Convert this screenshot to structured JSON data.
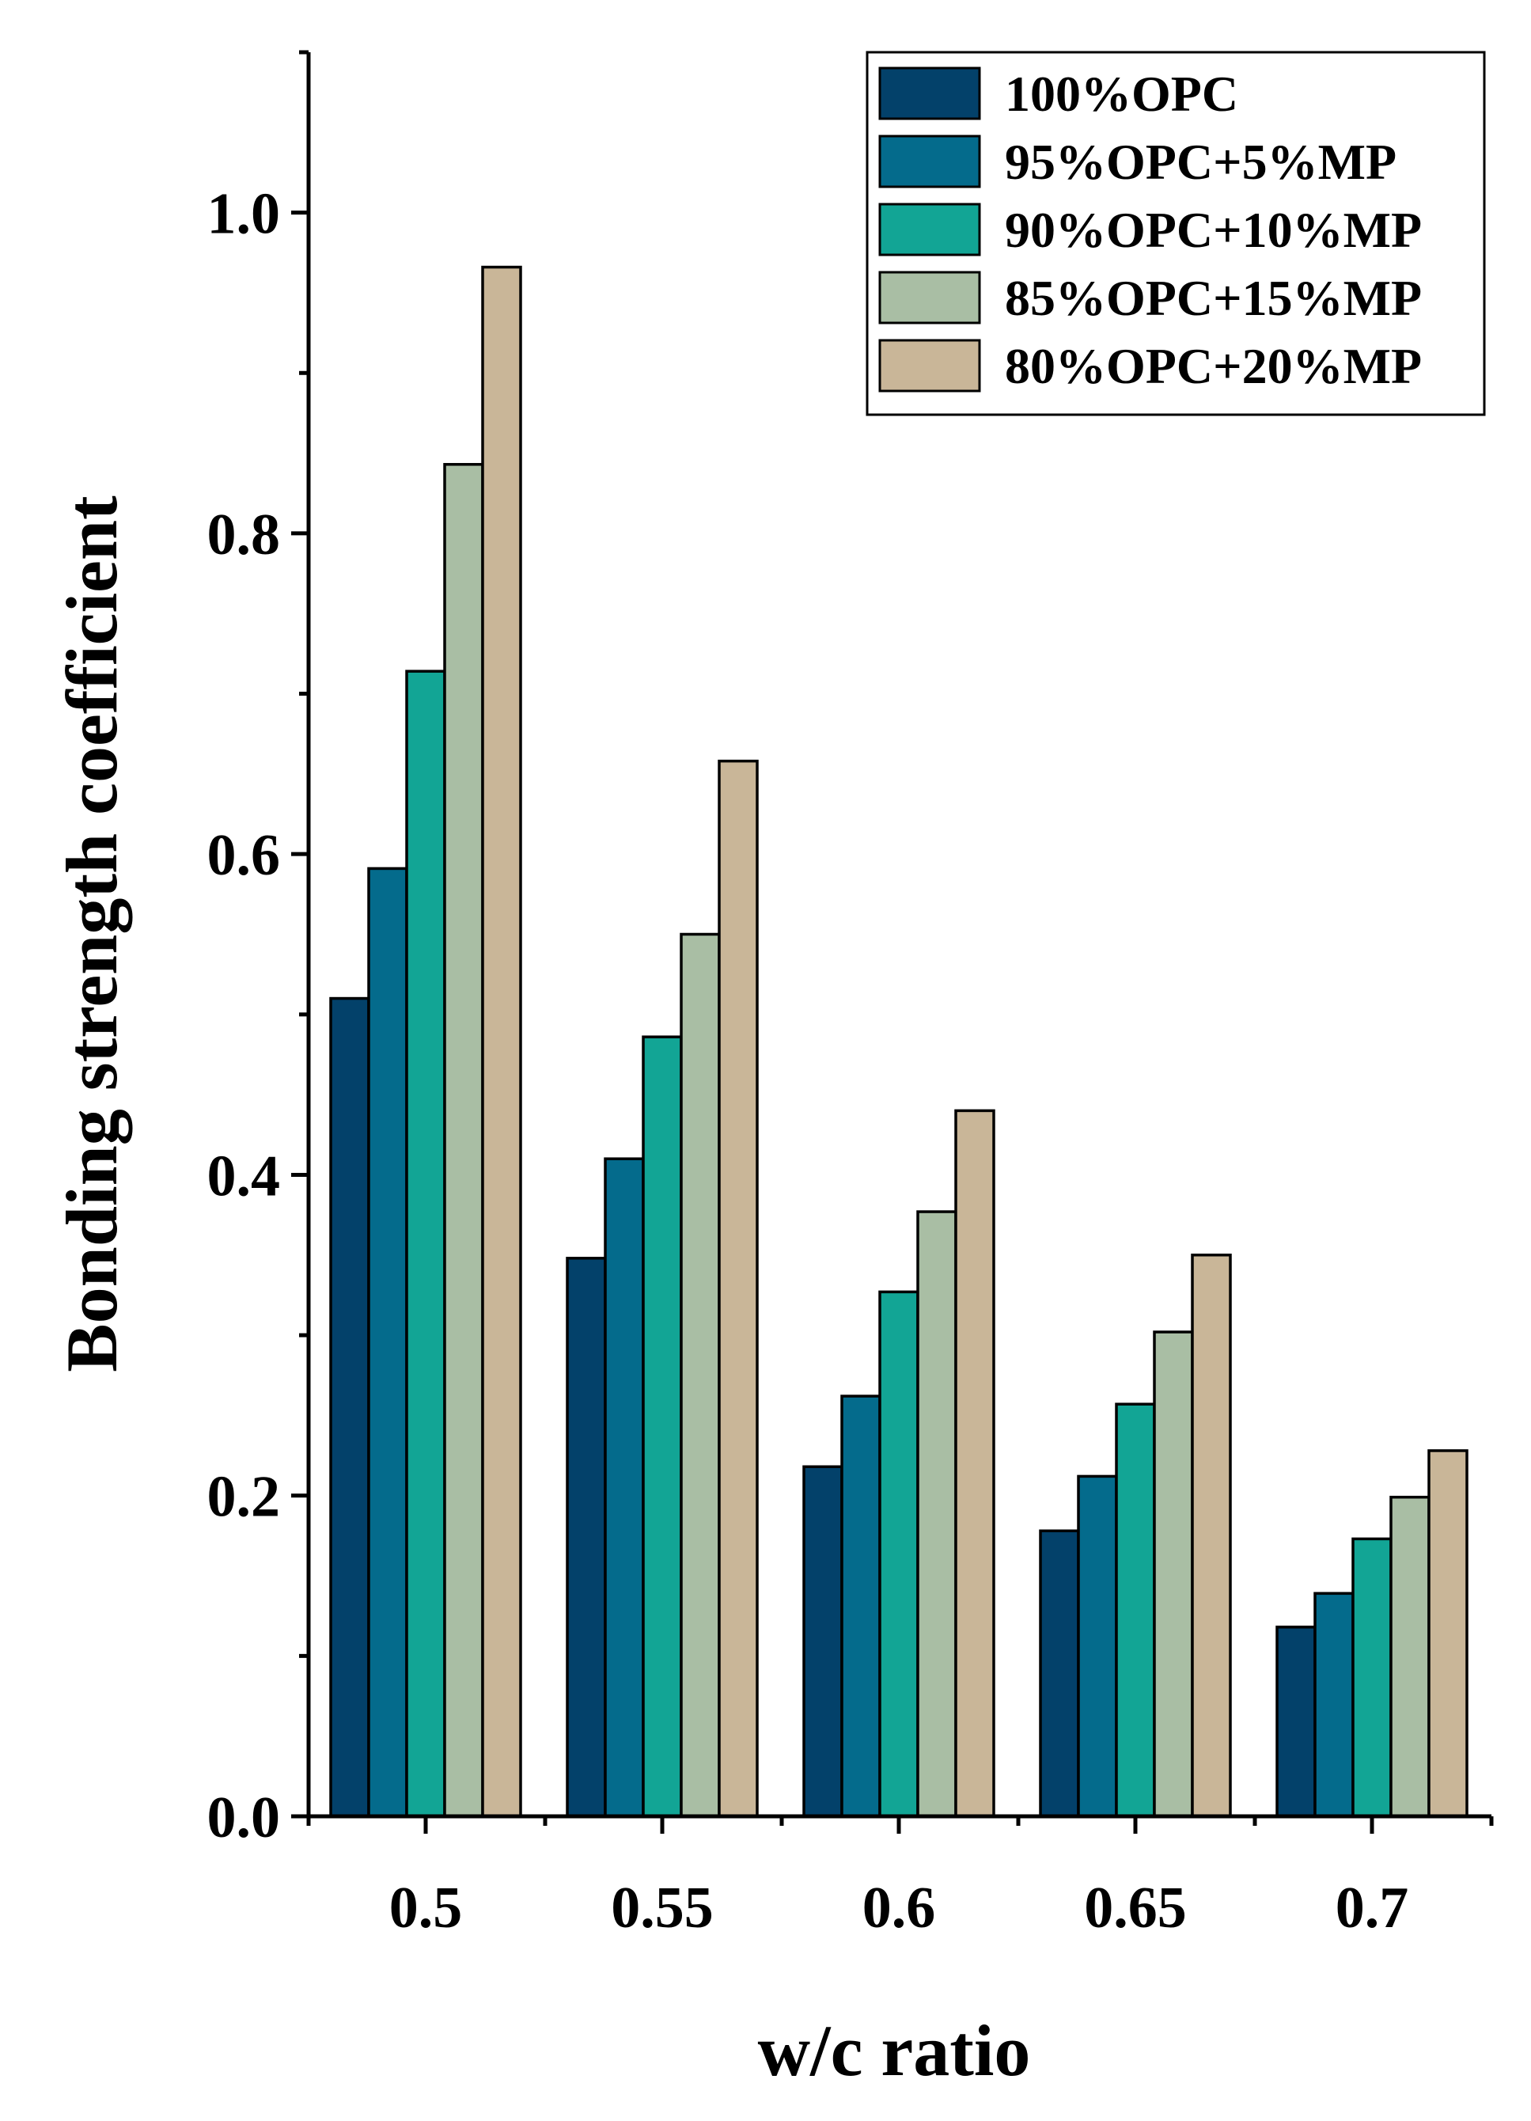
{
  "chart_data": {
    "type": "bar",
    "title": "",
    "xlabel": "w/c ratio",
    "ylabel": "Bonding strength coefficient",
    "categories": [
      "0.5",
      "0.55",
      "0.6",
      "0.65",
      "0.7"
    ],
    "ylim": [
      0,
      1.1
    ],
    "yticks": [
      {
        "value": 0.0,
        "label": "0.0"
      },
      {
        "value": 0.2,
        "label": "0.2"
      },
      {
        "value": 0.4,
        "label": "0.4"
      },
      {
        "value": 0.6,
        "label": "0.6"
      },
      {
        "value": 0.8,
        "label": "0.8"
      },
      {
        "value": 1.0,
        "label": "1.0"
      }
    ],
    "yminor_ticks": [
      0.1,
      0.3,
      0.5,
      0.7,
      0.9,
      1.1
    ],
    "legend_position": "top-right",
    "grid": false,
    "series": [
      {
        "name": "100%OPC",
        "color": "#03416A",
        "values": [
          0.51,
          0.348,
          0.218,
          0.178,
          0.118
        ]
      },
      {
        "name": "95%OPC+5%MP",
        "color": "#046B8C",
        "values": [
          0.591,
          0.41,
          0.262,
          0.212,
          0.139
        ]
      },
      {
        "name": "90%OPC+10%MP",
        "color": "#12A595",
        "values": [
          0.714,
          0.486,
          0.327,
          0.257,
          0.173
        ]
      },
      {
        "name": "85%OPC+15%MP",
        "color": "#A9BEA4",
        "values": [
          0.843,
          0.55,
          0.377,
          0.302,
          0.199
        ]
      },
      {
        "name": "80%OPC+20%MP",
        "color": "#C9B698",
        "values": [
          0.966,
          0.658,
          0.44,
          0.35,
          0.228
        ]
      }
    ]
  }
}
